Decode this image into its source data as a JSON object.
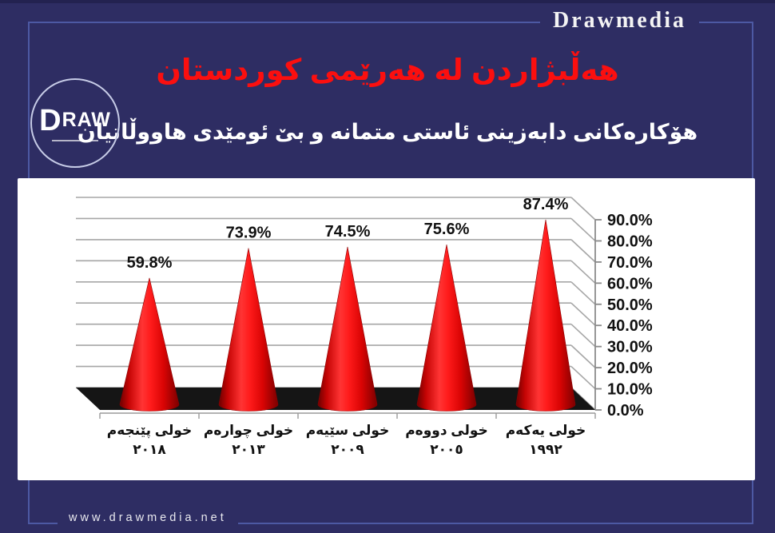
{
  "brand": {
    "name": "Drawmedia"
  },
  "logo": {
    "d": "D",
    "raw": "RAW"
  },
  "header": {
    "title": "هه‌ڵبژاردن له‌ هه‌رێمی كوردستان",
    "subtitle": "هۆكاره‌كانی دابه‌زینی ئاستی متمانه‌ و بێ ئومێدی هاووڵاتیان"
  },
  "footer": {
    "website": "www.drawmedia.net"
  },
  "colors": {
    "background": "#2e2d63",
    "frame_line": "#4d59a3",
    "title_red": "#fb0f0f",
    "cone_red": "#e31212",
    "floor_black": "#151515",
    "panel_white": "#ffffff",
    "grid_gray": "#a6a6a6"
  },
  "chart_data": {
    "type": "bar",
    "style": "3d-cones",
    "title": "",
    "xlabel": "",
    "ylabel": "",
    "categories": [
      {
        "name": "خولی پێنجه‌م",
        "year": "٢٠١٨"
      },
      {
        "name": "خولی چواره‌م",
        "year": "٢٠١٣"
      },
      {
        "name": "خولی سێیه‌م",
        "year": "٢٠٠٩"
      },
      {
        "name": "خولی دووه‌م",
        "year": "٢٠٠٥"
      },
      {
        "name": "خولی یه‌كه‌م",
        "year": "١٩٩٢"
      }
    ],
    "values": [
      59.8,
      73.9,
      74.5,
      75.6,
      87.4
    ],
    "value_labels": [
      "59.8%",
      "73.9%",
      "74.5%",
      "75.6%",
      "87.4%"
    ],
    "y_ticks": [
      "0.0%",
      "10.0%",
      "20.0%",
      "30.0%",
      "40.0%",
      "50.0%",
      "60.0%",
      "70.0%",
      "80.0%",
      "90.0%"
    ],
    "ylim": [
      0,
      90
    ],
    "y_axis_side": "right",
    "grid": true,
    "legend": false
  }
}
